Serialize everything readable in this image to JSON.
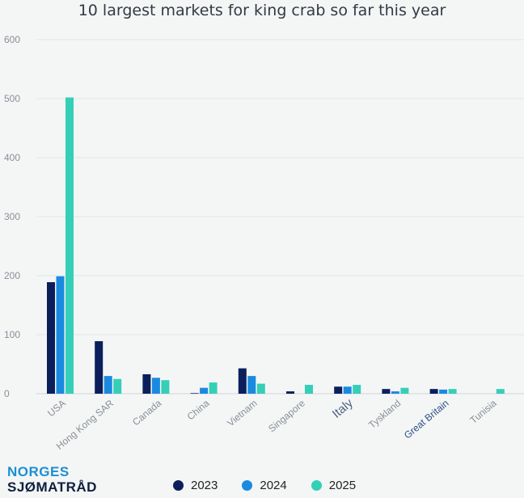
{
  "chart_data": {
    "type": "bar",
    "title": "10 largest markets for king crab so far this year",
    "xlabel": "",
    "ylabel": "",
    "ylim": [
      0,
      600
    ],
    "yticks": [
      0,
      100,
      200,
      300,
      400,
      500,
      600
    ],
    "grid": true,
    "legend_position": "bottom",
    "categories": [
      "USA",
      "Hong Kong SAR",
      "Canada",
      "China",
      "Vietnam",
      "Singapore",
      "Italy",
      "Tyskland",
      "Great Britain",
      "Tunisia"
    ],
    "series": [
      {
        "name": "2023",
        "color": "#0b1f5c",
        "values": [
          189,
          89,
          33,
          1,
          43,
          4,
          12,
          8,
          8,
          0
        ]
      },
      {
        "name": "2024",
        "color": "#1a8ae0",
        "values": [
          199,
          30,
          27,
          10,
          30,
          0,
          12,
          4,
          7,
          0
        ]
      },
      {
        "name": "2025",
        "color": "#35cfb7",
        "values": [
          502,
          25,
          23,
          19,
          17,
          15,
          15,
          10,
          8,
          8
        ]
      }
    ]
  },
  "branding": {
    "line1": "NORGES",
    "line2": "SJØMATRÅD"
  }
}
